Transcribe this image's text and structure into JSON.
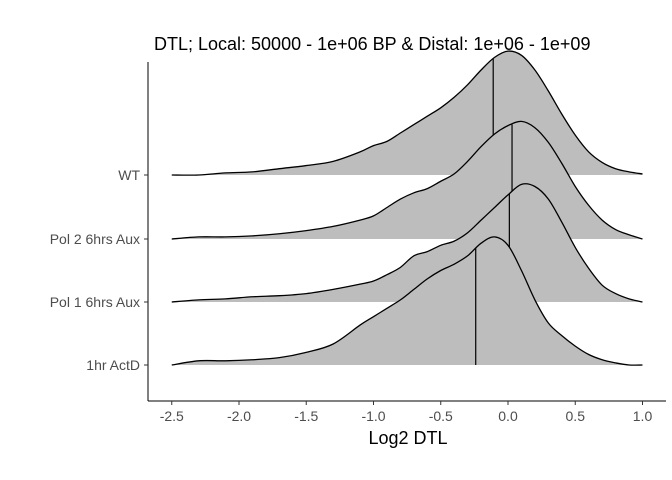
{
  "chart_data": {
    "type": "ridgeline",
    "title": "DTL; Local: 50000 - 1e+06 BP & Distal: 1e+06 - 1e+09",
    "xlabel": "Log2 DTL",
    "ylabel": "",
    "xlim": [
      -2.6,
      1.1
    ],
    "xticks": [
      -2.5,
      -2.0,
      -1.5,
      -1.0,
      -0.5,
      0.0,
      0.5,
      1.0
    ],
    "xtick_labels": [
      "-2.5",
      "-2.0",
      "-1.5",
      "-1.0",
      "-0.5",
      "0.0",
      "0.5",
      "1.0"
    ],
    "fill_color": "#bdbdbd",
    "line_color": "#000000",
    "grid": false,
    "series": [
      {
        "name": "WT",
        "median": -0.11,
        "x": [
          -2.5,
          -2.3,
          -2.1,
          -1.9,
          -1.7,
          -1.5,
          -1.3,
          -1.1,
          -1.0,
          -0.9,
          -0.8,
          -0.7,
          -0.6,
          -0.5,
          -0.4,
          -0.3,
          -0.2,
          -0.1,
          0.0,
          0.1,
          0.2,
          0.3,
          0.4,
          0.5,
          0.6,
          0.7,
          0.8,
          0.9,
          1.0
        ],
        "y": [
          0.0,
          0.0,
          0.02,
          0.03,
          0.06,
          0.09,
          0.13,
          0.22,
          0.28,
          0.32,
          0.4,
          0.48,
          0.56,
          0.64,
          0.74,
          0.86,
          1.0,
          1.12,
          1.18,
          1.14,
          1.0,
          0.8,
          0.58,
          0.38,
          0.22,
          0.12,
          0.06,
          0.03,
          0.01
        ]
      },
      {
        "name": "Pol 2 6hrs Aux",
        "median": 0.03,
        "x": [
          -2.5,
          -2.3,
          -2.1,
          -1.9,
          -1.7,
          -1.5,
          -1.3,
          -1.1,
          -1.0,
          -0.9,
          -0.8,
          -0.7,
          -0.6,
          -0.5,
          -0.4,
          -0.3,
          -0.2,
          -0.1,
          0.0,
          0.1,
          0.2,
          0.3,
          0.4,
          0.5,
          0.6,
          0.7,
          0.8,
          0.9,
          1.0
        ],
        "y": [
          0.0,
          0.02,
          0.02,
          0.03,
          0.05,
          0.08,
          0.12,
          0.18,
          0.22,
          0.3,
          0.38,
          0.44,
          0.48,
          0.55,
          0.62,
          0.74,
          0.88,
          1.0,
          1.08,
          1.12,
          1.06,
          0.92,
          0.72,
          0.5,
          0.32,
          0.18,
          0.09,
          0.04,
          0.0
        ]
      },
      {
        "name": "Pol 1 6hrs Aux",
        "median": 0.01,
        "x": [
          -2.5,
          -2.3,
          -2.1,
          -1.9,
          -1.7,
          -1.5,
          -1.3,
          -1.1,
          -1.0,
          -0.9,
          -0.8,
          -0.7,
          -0.6,
          -0.5,
          -0.4,
          -0.3,
          -0.2,
          -0.1,
          0.0,
          0.1,
          0.2,
          0.3,
          0.4,
          0.5,
          0.6,
          0.7,
          0.8,
          0.9,
          1.0
        ],
        "y": [
          0.0,
          0.02,
          0.03,
          0.05,
          0.06,
          0.08,
          0.12,
          0.17,
          0.2,
          0.26,
          0.33,
          0.44,
          0.48,
          0.54,
          0.58,
          0.66,
          0.78,
          0.9,
          1.02,
          1.12,
          1.1,
          0.98,
          0.76,
          0.52,
          0.32,
          0.16,
          0.08,
          0.03,
          0.0
        ]
      },
      {
        "name": "1hr ActD",
        "median": -0.24,
        "x": [
          -2.5,
          -2.3,
          -2.1,
          -1.9,
          -1.7,
          -1.5,
          -1.3,
          -1.1,
          -1.0,
          -0.9,
          -0.8,
          -0.7,
          -0.6,
          -0.5,
          -0.4,
          -0.3,
          -0.2,
          -0.1,
          0.0,
          0.1,
          0.2,
          0.3,
          0.4,
          0.5,
          0.6,
          0.7,
          0.8,
          0.9,
          1.0
        ],
        "y": [
          0.0,
          0.04,
          0.04,
          0.05,
          0.07,
          0.12,
          0.2,
          0.38,
          0.46,
          0.54,
          0.62,
          0.72,
          0.82,
          0.9,
          0.96,
          1.04,
          1.16,
          1.22,
          1.14,
          0.9,
          0.62,
          0.4,
          0.28,
          0.18,
          0.1,
          0.05,
          0.02,
          0.0,
          0.0
        ]
      }
    ]
  }
}
